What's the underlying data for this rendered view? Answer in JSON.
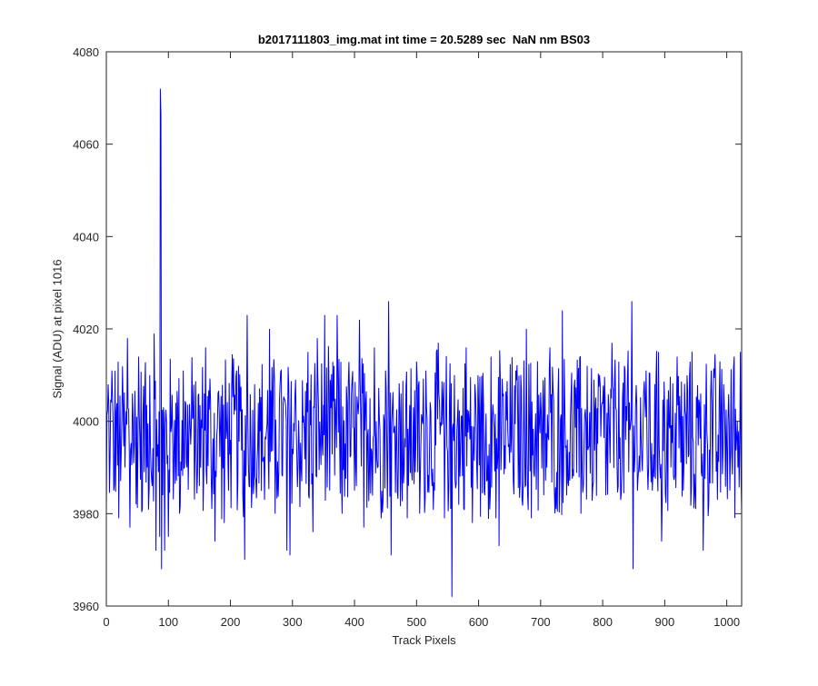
{
  "chart_data": {
    "type": "line",
    "title": "b2017111803_img.mat int time = 20.5289 sec  NaN nm BS03",
    "xlabel": "Track Pixels",
    "ylabel": "Signal (ADU) at pixel 1016",
    "xlim": [
      0,
      1024
    ],
    "ylim": [
      3960,
      4080
    ],
    "xticks": [
      0,
      100,
      200,
      300,
      400,
      500,
      600,
      700,
      800,
      900,
      1000
    ],
    "yticks": [
      3960,
      3980,
      4000,
      4020,
      4040,
      4060,
      4080
    ],
    "grid": false,
    "legend": "none",
    "line_color": "#0000ff",
    "series": [
      {
        "mean": 3997,
        "noise_peak_to_peak": 40,
        "points": [
          [
            0,
            3980
          ],
          [
            3,
            4008
          ],
          [
            6,
            3992
          ],
          [
            9,
            4011
          ],
          [
            12,
            3985
          ],
          [
            16,
            4002
          ],
          [
            20,
            3979
          ],
          [
            25,
            4000
          ],
          [
            30,
            3990
          ],
          [
            34,
            4018
          ],
          [
            38,
            3977
          ],
          [
            42,
            4006
          ],
          [
            48,
            3982
          ],
          [
            52,
            4014
          ],
          [
            58,
            3981
          ],
          [
            62,
            4007
          ],
          [
            66,
            3990
          ],
          [
            70,
            4010
          ],
          [
            74,
            3986
          ],
          [
            77,
            4019
          ],
          [
            80,
            3972
          ],
          [
            83,
            3995
          ],
          [
            86,
            3975
          ],
          [
            87,
            4072
          ],
          [
            88,
            4066
          ],
          [
            89,
            3968
          ],
          [
            91,
            3984
          ],
          [
            94,
            3972
          ],
          [
            97,
            4000
          ],
          [
            100,
            3975
          ],
          [
            105,
            3999
          ],
          [
            112,
            4004
          ],
          [
            118,
            3980
          ],
          [
            124,
            4011
          ],
          [
            130,
            3990
          ],
          [
            140,
            4001
          ],
          [
            150,
            3986
          ],
          [
            160,
            4016
          ],
          [
            170,
            3981
          ],
          [
            175,
            3974
          ],
          [
            180,
            4006
          ],
          [
            190,
            3978
          ],
          [
            200,
            3996
          ],
          [
            210,
            4011
          ],
          [
            220,
            3984
          ],
          [
            223,
            3970
          ],
          [
            227,
            4023
          ],
          [
            235,
            3986
          ],
          [
            245,
            4004
          ],
          [
            255,
            3983
          ],
          [
            263,
            4020
          ],
          [
            272,
            3980
          ],
          [
            282,
            4011
          ],
          [
            291,
            3972
          ],
          [
            296,
            3971
          ],
          [
            305,
            4009
          ],
          [
            315,
            3987
          ],
          [
            325,
            4015
          ],
          [
            333,
            3976
          ],
          [
            340,
            4018
          ],
          [
            348,
            3995
          ],
          [
            352,
            4023
          ],
          [
            360,
            3985
          ],
          [
            367,
            4012
          ],
          [
            372,
            4023
          ],
          [
            380,
            3980
          ],
          [
            390,
            4008
          ],
          [
            400,
            3985
          ],
          [
            408,
            4022
          ],
          [
            415,
            3977
          ],
          [
            425,
            4005
          ],
          [
            432,
            4016
          ],
          [
            437,
            3990
          ],
          [
            450,
            4011
          ],
          [
            455,
            4026
          ],
          [
            459,
            3971
          ],
          [
            465,
            3999
          ],
          [
            475,
            4006
          ],
          [
            485,
            3979
          ],
          [
            495,
            4003
          ],
          [
            505,
            3980
          ],
          [
            515,
            4011
          ],
          [
            525,
            3986
          ],
          [
            535,
            4017
          ],
          [
            545,
            3979
          ],
          [
            553,
            4004
          ],
          [
            557,
            3962
          ],
          [
            561,
            4010
          ],
          [
            570,
            3988
          ],
          [
            580,
            4016
          ],
          [
            590,
            3978
          ],
          [
            600,
            4004
          ],
          [
            610,
            3984
          ],
          [
            620,
            4014
          ],
          [
            628,
            3979
          ],
          [
            633,
            3973
          ],
          [
            640,
            4006
          ],
          [
            650,
            3991
          ],
          [
            660,
            4011
          ],
          [
            670,
            3983
          ],
          [
            677,
            4020
          ],
          [
            685,
            3979
          ],
          [
            695,
            4013
          ],
          [
            705,
            3984
          ],
          [
            715,
            4016
          ],
          [
            725,
            3981
          ],
          [
            735,
            4024
          ],
          [
            745,
            3986
          ],
          [
            755,
            4009
          ],
          [
            765,
            3980
          ],
          [
            775,
            4012
          ],
          [
            785,
            3987
          ],
          [
            795,
            4010
          ],
          [
            805,
            3984
          ],
          [
            815,
            4017
          ],
          [
            825,
            3986
          ],
          [
            835,
            4012
          ],
          [
            842,
            3989
          ],
          [
            847,
            4026
          ],
          [
            849,
            3968
          ],
          [
            853,
            4003
          ],
          [
            860,
            3989
          ],
          [
            870,
            4011
          ],
          [
            880,
            3985
          ],
          [
            890,
            4015
          ],
          [
            895,
            3974
          ],
          [
            900,
            4002
          ],
          [
            910,
            3990
          ],
          [
            920,
            4014
          ],
          [
            930,
            3985
          ],
          [
            940,
            4010
          ],
          [
            950,
            3981
          ],
          [
            958,
            4006
          ],
          [
            962,
            3972
          ],
          [
            966,
            4000
          ],
          [
            975,
            4011
          ],
          [
            985,
            3983
          ],
          [
            995,
            4008
          ],
          [
            1005,
            3985
          ],
          [
            1012,
            4014
          ],
          [
            1018,
            3990
          ],
          [
            1022,
            4015
          ],
          [
            1024,
            3980
          ]
        ]
      }
    ]
  }
}
